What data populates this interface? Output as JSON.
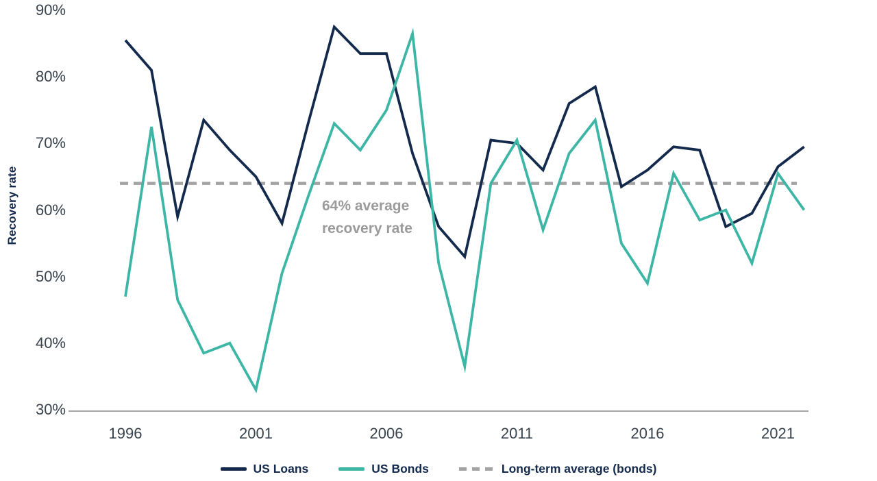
{
  "chart_data": {
    "type": "line",
    "title": "",
    "ylabel": "Recovery rate",
    "xlabel": "",
    "ylim": [
      30,
      90
    ],
    "xlim": [
      1996,
      2022
    ],
    "grid": false,
    "legend_position": "bottom",
    "x": [
      1996,
      1997,
      1998,
      1999,
      2000,
      2001,
      2002,
      2003,
      2004,
      2005,
      2006,
      2007,
      2008,
      2009,
      2010,
      2011,
      2012,
      2013,
      2014,
      2015,
      2016,
      2017,
      2018,
      2019,
      2020,
      2021,
      2022
    ],
    "series": [
      {
        "name": "US Loans",
        "color": "#142A4D",
        "values": [
          85.5,
          81,
          59,
          73.5,
          69,
          65,
          58,
          73,
          87.5,
          83.5,
          83.5,
          68.5,
          57.5,
          53,
          70.5,
          70,
          66,
          76,
          78.5,
          63.5,
          66,
          69.5,
          69,
          57.5,
          59.5,
          66.5,
          69.5
        ]
      },
      {
        "name": "US Bonds",
        "color": "#3DB6A6",
        "values": [
          47,
          72.5,
          46.5,
          38.5,
          40,
          33,
          50.5,
          62,
          73,
          69,
          75,
          86.5,
          52,
          36.5,
          64,
          70.5,
          57,
          68.5,
          73.5,
          55,
          49,
          65.5,
          58.5,
          60,
          52,
          65.5,
          60
        ]
      }
    ],
    "average_line": {
      "value": 64,
      "legend_label": "Long-term average (bonds)",
      "color": "#A3A3A3",
      "annotation": [
        "64% average",
        "recovery rate"
      ],
      "annotation_color": "#9B9B9B"
    },
    "y_ticks": [
      {
        "value": 90,
        "label": "90%"
      },
      {
        "value": 80,
        "label": "80%"
      },
      {
        "value": 70,
        "label": "70%"
      },
      {
        "value": 60,
        "label": "60%"
      },
      {
        "value": 50,
        "label": "50%"
      },
      {
        "value": 40,
        "label": "40%"
      },
      {
        "value": 30,
        "label": "30%"
      }
    ],
    "x_ticks": [
      {
        "value": 1996,
        "label": "1996"
      },
      {
        "value": 2001,
        "label": "2001"
      },
      {
        "value": 2006,
        "label": "2006"
      },
      {
        "value": 2011,
        "label": "2011"
      },
      {
        "value": 2016,
        "label": "2016"
      },
      {
        "value": 2021,
        "label": "2021"
      }
    ],
    "axis_color": "#A6A6A6",
    "tick_color": "#39434D"
  }
}
